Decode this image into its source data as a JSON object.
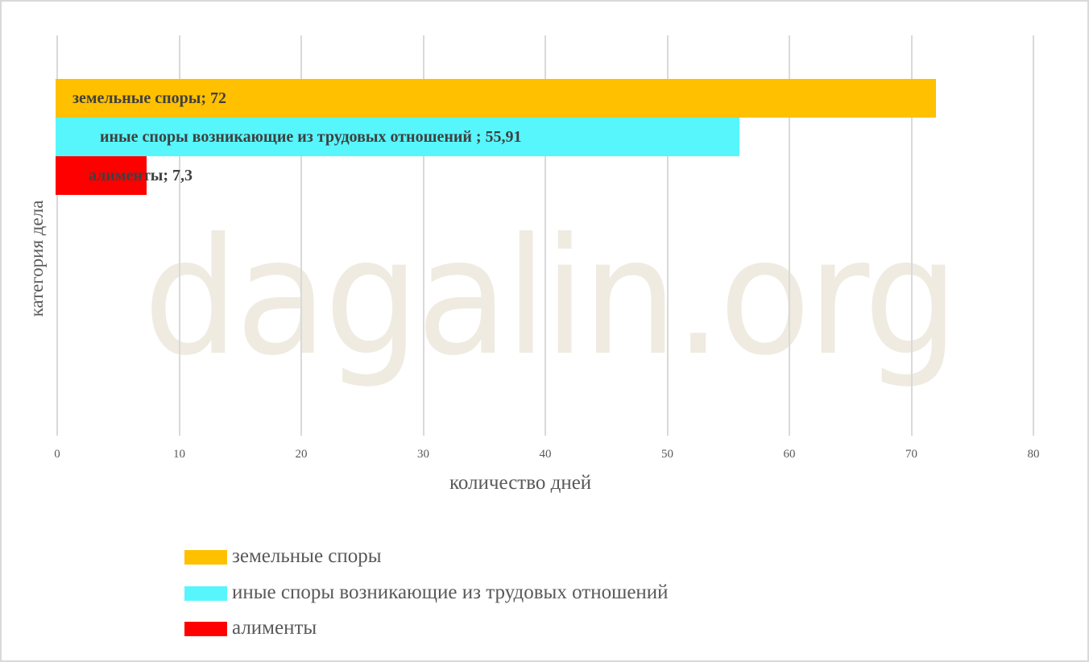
{
  "chart_data": {
    "type": "bar",
    "orientation": "horizontal",
    "title": "",
    "xlabel": "количество дней",
    "ylabel": "категория дела",
    "xlim": [
      0,
      80
    ],
    "x_ticks": [
      "0",
      "10",
      "20",
      "30",
      "40",
      "50",
      "60",
      "70",
      "80"
    ],
    "grid": "vertical",
    "legend_position": "bottom",
    "series": [
      {
        "name": "земельные споры",
        "value": 72,
        "color": "#ffc000",
        "label": "земельные споры; 72"
      },
      {
        "name": "иные споры возникающие из трудовых отношений",
        "value": 55.91,
        "color": "#57f6fc",
        "label": "иные споры возникающие из трудовых отношений ; 55,91"
      },
      {
        "name": "алименты",
        "value": 7.3,
        "color": "#ff0000",
        "label": "алименты; 7,3"
      }
    ]
  },
  "watermark": "dagalin.org",
  "axis": {
    "x_title": "количество дней",
    "y_title": "категория дела"
  },
  "legend": [
    {
      "label": "земельные споры",
      "color": "#ffc000"
    },
    {
      "label": "иные споры возникающие из трудовых отношений",
      "color": "#57f6fc"
    },
    {
      "label": "алименты",
      "color": "#ff0000"
    }
  ]
}
